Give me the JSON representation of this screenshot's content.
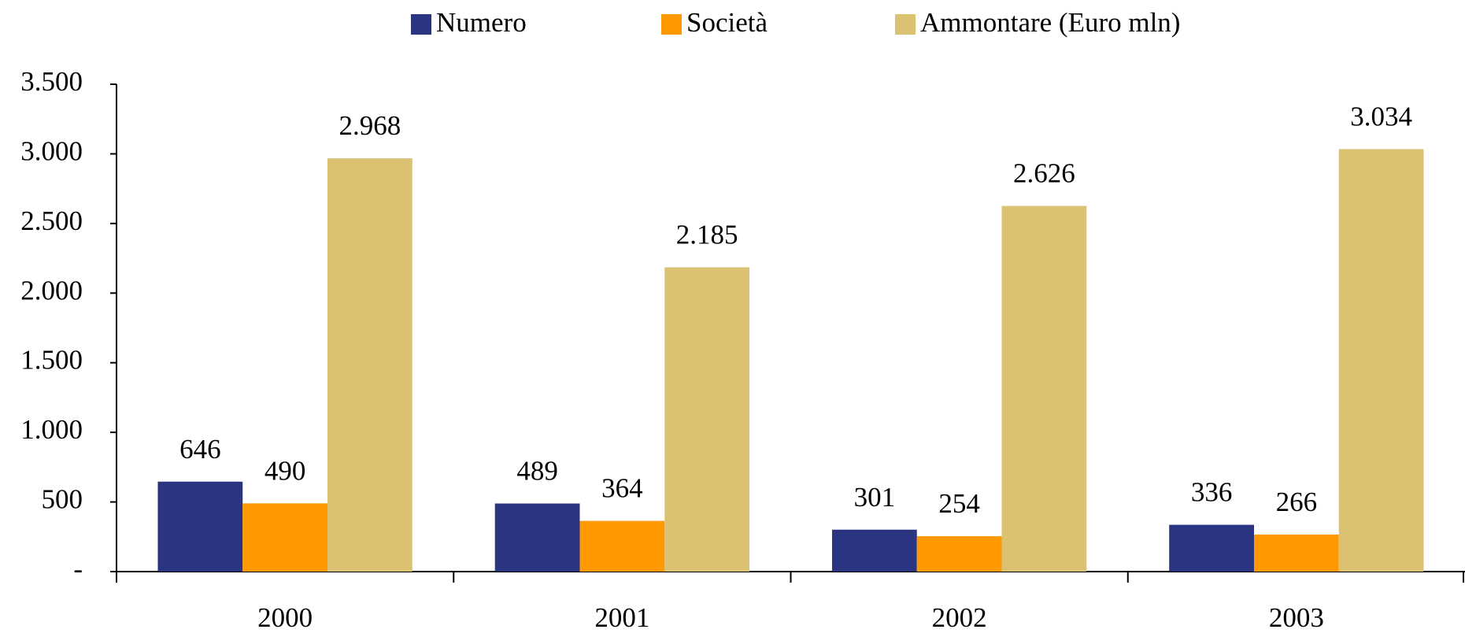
{
  "chart_data": {
    "type": "bar",
    "categories": [
      "2000",
      "2001",
      "2002",
      "2003"
    ],
    "series": [
      {
        "name": "Numero",
        "color": "#2b3480",
        "values": [
          646,
          489,
          301,
          336
        ]
      },
      {
        "name": "Società",
        "color": "#ff9900",
        "values": [
          490,
          364,
          254,
          266
        ]
      },
      {
        "name": "Ammontare (Euro mln)",
        "color": "#dbc172",
        "values": [
          2968,
          2185,
          2626,
          3034
        ],
        "value_labels": [
          "2.968",
          "2.185",
          "2.626",
          "3.034"
        ]
      }
    ],
    "ylim": [
      0,
      3500
    ],
    "yticks": [
      {
        "value": 0,
        "label": "-"
      },
      500,
      {
        "value": 1000,
        "label": "1.000"
      },
      {
        "value": 1500,
        "label": "1.500"
      },
      {
        "value": 2000,
        "label": "2.000"
      },
      {
        "value": 2500,
        "label": "2.500"
      },
      {
        "value": 3000,
        "label": "3.000"
      },
      {
        "value": 3500,
        "label": "3.500"
      }
    ],
    "legend": "top",
    "grid": false
  }
}
